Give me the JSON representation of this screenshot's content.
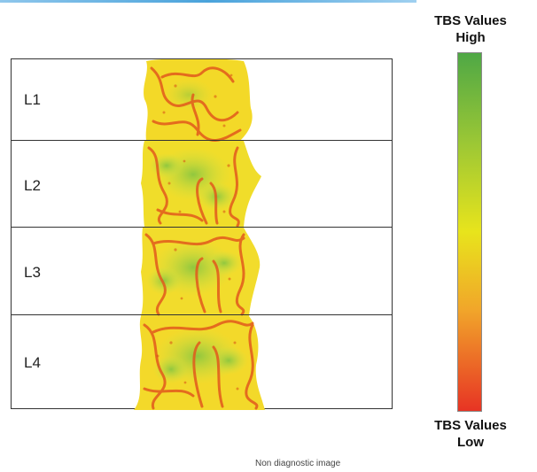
{
  "header": {
    "title_fragment": "..."
  },
  "vertebrae": [
    {
      "label": "L1"
    },
    {
      "label": "L2"
    },
    {
      "label": "L3"
    },
    {
      "label": "L4"
    }
  ],
  "scale": {
    "top_label_line1": "TBS Values",
    "top_label_line2": "High",
    "bottom_label_line1": "TBS Values",
    "bottom_label_line2": "Low",
    "colors": [
      "#4fa845",
      "#9bc735",
      "#e8e41c",
      "#f1a52a",
      "#e73424"
    ]
  },
  "footnote": "Non diagnostic image"
}
